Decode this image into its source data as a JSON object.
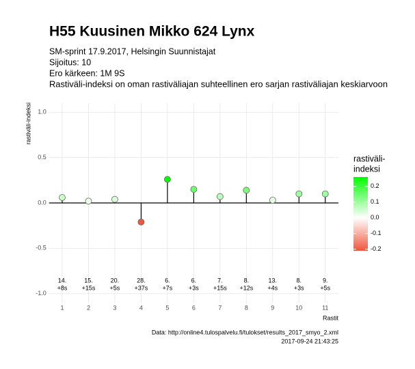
{
  "chart_data": {
    "type": "lollipop",
    "title": "H55 Kuusinen Mikko 624 Lynx",
    "subtitle": [
      "SM-sprint 17.9.2017, Helsingin Suunnistajat",
      "Sijoitus: 10",
      "Ero kärkeen: 1M 9S",
      "Rastiväli-indeksi on oman rastiväliajan suhteellinen ero sarjan rastiväliajan keskiarvoon"
    ],
    "x": [
      1,
      2,
      3,
      4,
      5,
      6,
      7,
      8,
      9,
      10,
      11
    ],
    "values": [
      0.06,
      0.02,
      0.04,
      -0.21,
      0.26,
      0.15,
      0.07,
      0.14,
      0.03,
      0.1,
      0.1
    ],
    "annotations": [
      {
        "rank": "14.",
        "diff": "+8s"
      },
      {
        "rank": "15.",
        "diff": "+15s"
      },
      {
        "rank": "20.",
        "diff": "+5s"
      },
      {
        "rank": "28.",
        "diff": "+37s"
      },
      {
        "rank": "6.",
        "diff": "+7s"
      },
      {
        "rank": "6.",
        "diff": "+3s"
      },
      {
        "rank": "7.",
        "diff": "+15s"
      },
      {
        "rank": "8.",
        "diff": "+12s"
      },
      {
        "rank": "13.",
        "diff": "+4s"
      },
      {
        "rank": "8.",
        "diff": "+3s"
      },
      {
        "rank": "9.",
        "diff": "+5s"
      }
    ],
    "xlim": [
      0.5,
      11.5
    ],
    "xticks": [
      1,
      2,
      3,
      4,
      5,
      6,
      7,
      8,
      9,
      10,
      11
    ],
    "ylim": [
      -1.1,
      1.1
    ],
    "yticks": [
      {
        "value": 1,
        "label": "1.0"
      },
      0.5,
      {
        "value": 0,
        "label": "0.0"
      },
      -0.5,
      {
        "value": -1,
        "label": "-1.0"
      }
    ],
    "x_label": "Rastit",
    "y_label": "rastiväli-indeksi",
    "legend_title": [
      "rastiväli-",
      "indeksi"
    ],
    "legend_ticks": [
      0.2,
      0.1,
      {
        "value": 0,
        "label": "0.0"
      },
      -0.1,
      -0.2
    ],
    "color_low": "#f0553c",
    "color_mid": "#ffffff",
    "color_high": "#00ff00",
    "grid": true,
    "caption": [
      "Data: http://online4.tulospalvelu.fi/tulokset/results_2017_smyo_2.xml",
      "2017-09-24 21:43:25"
    ]
  }
}
